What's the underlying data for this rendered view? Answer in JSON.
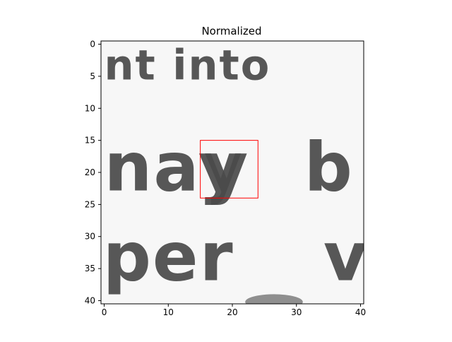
{
  "chart_data": {
    "type": "heatmap",
    "title": "Normalized",
    "colormap": "gray",
    "image_size": [
      41,
      41
    ],
    "xlim": [
      -0.5,
      40.5
    ],
    "ylim": [
      40.5,
      -0.5
    ],
    "x_ticks": [
      0,
      10,
      20,
      30,
      40
    ],
    "y_ticks": [
      0,
      5,
      10,
      15,
      20,
      25,
      30,
      35,
      40
    ],
    "x_tick_labels": [
      "0",
      "10",
      "20",
      "30",
      "40"
    ],
    "y_tick_labels": [
      "0",
      "5",
      "10",
      "15",
      "20",
      "25",
      "30",
      "35",
      "40"
    ],
    "highlight_box": {
      "x0": 15,
      "x1": 24,
      "y0": 15,
      "y1": 24,
      "color": "#ff0000"
    },
    "text_fragments": [
      {
        "text": "nt  into",
        "x": 0,
        "y": 5.5,
        "font_size_data": 6.5
      },
      {
        "text": "nay",
        "x": 0,
        "y": 22.8,
        "font_size_data": 10.5
      },
      {
        "text": "y",
        "x": 15.6,
        "y": 22.8,
        "font_size_data": 10.5
      },
      {
        "text": "b",
        "x": 31.2,
        "y": 22.8,
        "font_size_data": 10.5
      },
      {
        "text": "per",
        "x": -0.2,
        "y": 36.8,
        "font_size_data": 10.5
      },
      {
        "text": "v",
        "x": 34.2,
        "y": 36.8,
        "font_size_data": 10.5
      }
    ],
    "bottom_smudge": {
      "x": 22,
      "y": 40.2,
      "width": 9,
      "height": 2.4
    },
    "background_gray": "#f7f7f7",
    "ink_color": "#4a4a4a"
  }
}
